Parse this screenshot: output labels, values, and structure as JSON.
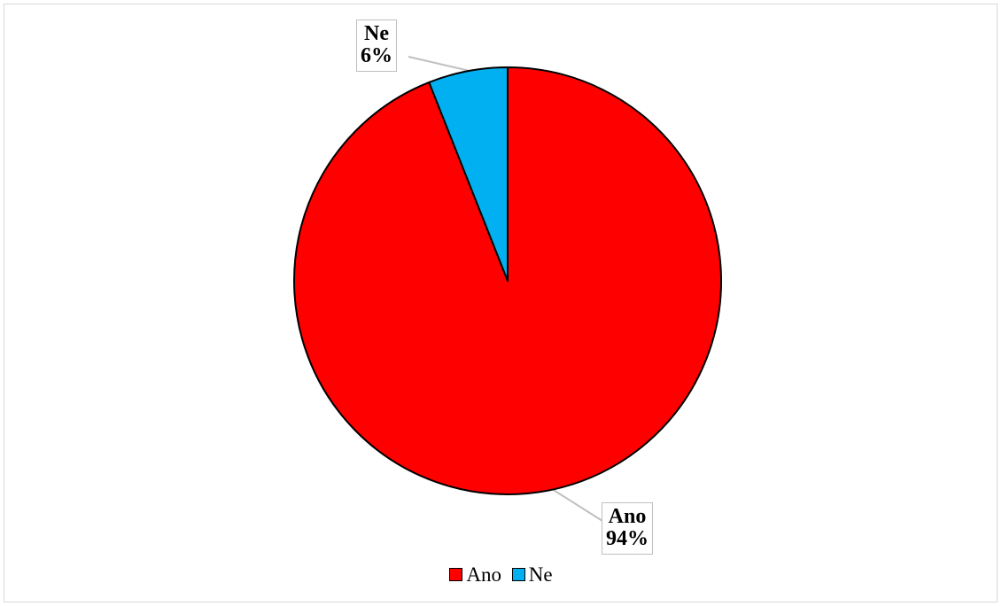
{
  "chart_data": {
    "type": "pie",
    "start_angle": "12 o'clock",
    "direction": "clockwise",
    "slices": [
      {
        "name": "Ano",
        "value": 94,
        "percent_label": "94%",
        "color": "#ff0000"
      },
      {
        "name": "Ne",
        "value": 6,
        "percent_label": "6%",
        "color": "#00b0f0"
      }
    ],
    "legend": {
      "position": "bottom"
    },
    "outline_color": "#000000",
    "label_border_color": "#bfbfbf",
    "leader_line_color": "#bfbfbf"
  }
}
